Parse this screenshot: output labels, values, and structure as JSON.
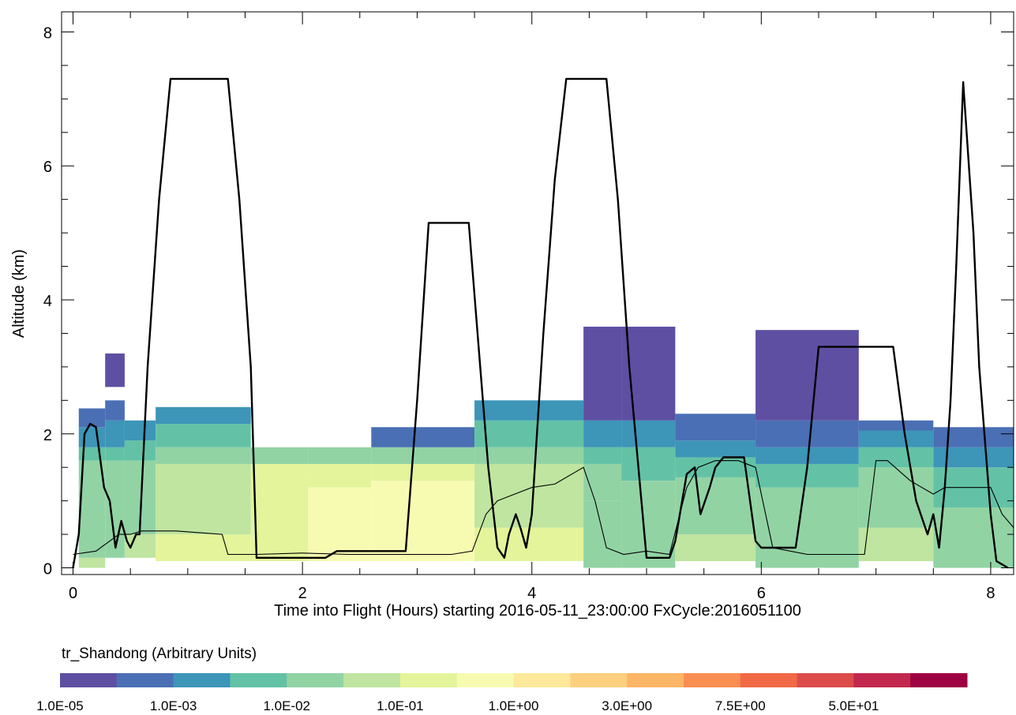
{
  "chart_data": {
    "type": "heatmap",
    "xlabel": "Time into Flight (Hours) starting 2016-05-11_23:00:00  FxCycle:2016051100",
    "ylabel": "Altitude (km)",
    "xlim": [
      -0.1,
      8.2
    ],
    "ylim": [
      -0.1,
      8.3
    ],
    "x_ticks": [
      0,
      2,
      4,
      6,
      8
    ],
    "y_ticks": [
      0,
      2,
      4,
      6,
      8
    ],
    "colorbar": {
      "title": "tr_Shandong (Arbitrary Units)",
      "tick_labels": [
        "1.0E-05",
        "1.0E-03",
        "1.0E-02",
        "1.0E-01",
        "1.0E+00",
        "3.0E+00",
        "7.5E+00",
        "5.0E+01"
      ],
      "colors": [
        "#5e4fa2",
        "#4a6fb4",
        "#3d95b8",
        "#63c2a5",
        "#92d3a4",
        "#bfe5a0",
        "#e3f49b",
        "#f7fbb2",
        "#fee89a",
        "#fdd07f",
        "#fdb566",
        "#f98e52",
        "#f16a45",
        "#dc4c4b",
        "#c2284e",
        "#9e0142"
      ]
    },
    "heatmap_columns": [
      {
        "x0": 0.05,
        "x1": 0.28,
        "bands": [
          [
            0,
            0.15,
            5
          ],
          [
            0.15,
            1.6,
            4
          ],
          [
            1.6,
            1.8,
            3
          ],
          [
            1.8,
            2.1,
            2
          ],
          [
            2.1,
            2.38,
            1
          ]
        ]
      },
      {
        "x0": 0.28,
        "x1": 0.45,
        "bands": [
          [
            0.15,
            1.6,
            4
          ],
          [
            1.6,
            1.8,
            3
          ],
          [
            1.8,
            2.2,
            2
          ],
          [
            2.2,
            2.5,
            1
          ],
          [
            2.7,
            3.2,
            0
          ]
        ]
      },
      {
        "x0": 0.45,
        "x1": 0.72,
        "bands": [
          [
            0.15,
            0.5,
            5
          ],
          [
            0.5,
            1.6,
            4
          ],
          [
            1.6,
            1.9,
            3
          ],
          [
            1.9,
            2.2,
            2
          ]
        ]
      },
      {
        "x0": 0.72,
        "x1": 1.55,
        "bands": [
          [
            0.1,
            0.5,
            6
          ],
          [
            0.5,
            1.55,
            5
          ],
          [
            1.55,
            1.8,
            4
          ],
          [
            1.8,
            2.15,
            3
          ],
          [
            2.15,
            2.4,
            2
          ]
        ]
      },
      {
        "x0": 1.55,
        "x1": 2.05,
        "bands": [
          [
            0.1,
            1.55,
            6
          ],
          [
            1.55,
            1.8,
            4
          ]
        ]
      },
      {
        "x0": 2.05,
        "x1": 2.6,
        "bands": [
          [
            0.1,
            1.2,
            7
          ],
          [
            1.2,
            1.55,
            6
          ],
          [
            1.55,
            1.8,
            4
          ]
        ]
      },
      {
        "x0": 2.6,
        "x1": 3.5,
        "bands": [
          [
            0.1,
            1.3,
            7
          ],
          [
            1.3,
            1.55,
            6
          ],
          [
            1.55,
            1.8,
            4
          ],
          [
            1.8,
            2.1,
            1
          ]
        ]
      },
      {
        "x0": 3.5,
        "x1": 4.45,
        "bands": [
          [
            0.1,
            0.6,
            6
          ],
          [
            0.6,
            1.55,
            5
          ],
          [
            1.55,
            1.8,
            4
          ],
          [
            1.8,
            2.2,
            3
          ],
          [
            2.2,
            2.5,
            2
          ]
        ]
      },
      {
        "x0": 4.45,
        "x1": 4.78,
        "bands": [
          [
            0,
            1.0,
            4
          ],
          [
            1.0,
            1.55,
            4
          ],
          [
            1.55,
            1.8,
            3
          ],
          [
            1.8,
            2.2,
            2
          ],
          [
            2.2,
            3.6,
            0
          ]
        ]
      },
      {
        "x0": 4.78,
        "x1": 5.25,
        "bands": [
          [
            0,
            1.3,
            4
          ],
          [
            1.3,
            1.8,
            3
          ],
          [
            1.8,
            2.2,
            2
          ],
          [
            2.2,
            3.6,
            0
          ]
        ]
      },
      {
        "x0": 5.25,
        "x1": 5.95,
        "bands": [
          [
            0.1,
            0.5,
            5
          ],
          [
            0.5,
            1.35,
            4
          ],
          [
            1.35,
            1.65,
            3
          ],
          [
            1.65,
            1.9,
            2
          ],
          [
            1.9,
            2.3,
            1
          ]
        ]
      },
      {
        "x0": 5.95,
        "x1": 6.85,
        "bands": [
          [
            0,
            1.2,
            4
          ],
          [
            1.2,
            1.55,
            3
          ],
          [
            1.55,
            1.8,
            2
          ],
          [
            1.8,
            2.2,
            1
          ],
          [
            2.2,
            3.55,
            0
          ]
        ]
      },
      {
        "x0": 6.85,
        "x1": 7.5,
        "bands": [
          [
            0.1,
            0.6,
            5
          ],
          [
            0.6,
            1.5,
            4
          ],
          [
            1.5,
            1.8,
            3
          ],
          [
            1.8,
            2.05,
            2
          ],
          [
            2.05,
            2.2,
            1
          ]
        ]
      },
      {
        "x0": 7.5,
        "x1": 8.2,
        "bands": [
          [
            0,
            0.9,
            4
          ],
          [
            0.9,
            1.5,
            3
          ],
          [
            1.5,
            1.8,
            2
          ],
          [
            1.8,
            2.1,
            1
          ]
        ]
      }
    ],
    "flight_altitude": {
      "x": [
        0.0,
        0.05,
        0.1,
        0.15,
        0.2,
        0.27,
        0.32,
        0.37,
        0.42,
        0.47,
        0.5,
        0.55,
        0.58,
        0.65,
        0.75,
        0.85,
        1.35,
        1.45,
        1.55,
        1.6,
        2.2,
        2.3,
        2.9,
        3.0,
        3.1,
        3.45,
        3.55,
        3.62,
        3.7,
        3.76,
        3.8,
        3.86,
        3.9,
        3.95,
        4.0,
        4.1,
        4.2,
        4.3,
        4.65,
        4.75,
        4.85,
        5.0,
        5.05,
        5.2,
        5.25,
        5.35,
        5.42,
        5.47,
        5.55,
        5.6,
        5.67,
        5.72,
        5.85,
        5.95,
        6.0,
        6.3,
        6.4,
        6.5,
        7.15,
        7.25,
        7.35,
        7.45,
        7.5,
        7.55,
        7.6,
        7.65,
        7.7,
        7.76,
        7.85,
        7.9,
        8.0,
        8.05,
        8.15
      ],
      "y": [
        0,
        0.5,
        2.0,
        2.15,
        2.1,
        1.2,
        1.0,
        0.3,
        0.7,
        0.4,
        0.3,
        0.5,
        0.5,
        3.0,
        5.5,
        7.3,
        7.3,
        5.5,
        3.0,
        0.15,
        0.15,
        0.25,
        0.25,
        2.5,
        5.15,
        5.15,
        3.0,
        1.5,
        0.3,
        0.15,
        0.5,
        0.8,
        0.6,
        0.3,
        0.8,
        3.5,
        5.8,
        7.3,
        7.3,
        5.5,
        3.0,
        0.15,
        0.15,
        0.15,
        0.4,
        1.4,
        1.5,
        0.8,
        1.2,
        1.5,
        1.65,
        1.65,
        1.65,
        0.4,
        0.3,
        0.3,
        1.5,
        3.3,
        3.3,
        2.0,
        1.0,
        0.5,
        0.8,
        0.3,
        1.2,
        2.5,
        4.5,
        7.25,
        5.0,
        3.0,
        0.8,
        0.1,
        0.0
      ]
    },
    "pbl_height": {
      "x": [
        0.0,
        0.2,
        0.4,
        0.5,
        0.6,
        0.9,
        1.3,
        1.35,
        1.6,
        2.0,
        2.4,
        2.8,
        3.1,
        3.3,
        3.48,
        3.6,
        3.7,
        3.85,
        4.0,
        4.2,
        4.45,
        4.55,
        4.65,
        4.8,
        5.0,
        5.2,
        5.35,
        5.45,
        5.6,
        5.8,
        5.95,
        6.1,
        6.4,
        6.6,
        6.8,
        6.9,
        7.0,
        7.1,
        7.3,
        7.5,
        7.6,
        7.8,
        8.0,
        8.1,
        8.2
      ],
      "y": [
        0.2,
        0.25,
        0.5,
        0.5,
        0.55,
        0.55,
        0.5,
        0.2,
        0.2,
        0.22,
        0.2,
        0.2,
        0.2,
        0.2,
        0.25,
        0.8,
        1.0,
        1.1,
        1.2,
        1.25,
        1.5,
        1.0,
        0.3,
        0.2,
        0.25,
        0.2,
        1.2,
        1.5,
        1.6,
        1.6,
        1.5,
        0.3,
        0.2,
        0.2,
        0.2,
        0.2,
        1.6,
        1.6,
        1.3,
        1.1,
        1.2,
        1.2,
        1.2,
        0.8,
        0.6
      ]
    }
  }
}
